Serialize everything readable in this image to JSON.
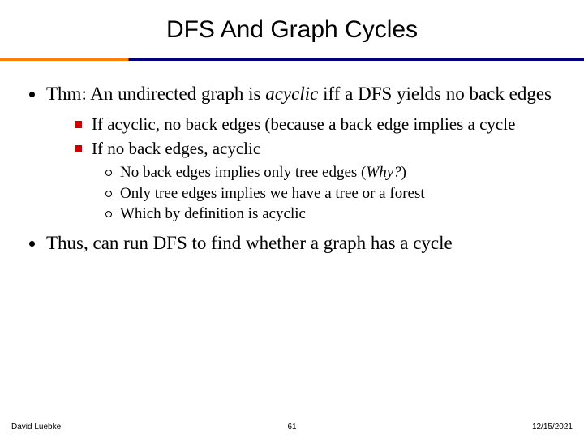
{
  "title": "DFS And Graph Cycles",
  "divider": {
    "left_color": "#ff7f00",
    "right_color": "#000080"
  },
  "body": {
    "p1_a": "Thm: An undirected graph is ",
    "p1_b": "acyclic",
    "p1_c": " iff a DFS yields no back edges",
    "s1": "If acyclic, no back edges (because a back edge implies a cycle",
    "s2": "If no back edges, acyclic",
    "t1_a": "No back edges implies only tree edges (",
    "t1_b": "Why?",
    "t1_c": ")",
    "t2": "Only tree edges implies we have a tree or a forest",
    "t3": "Which by definition is acyclic",
    "p2": "Thus, can run DFS to find whether a graph has a cycle"
  },
  "footer": {
    "author": "David Luebke",
    "page": "61",
    "date": "12/15/2021"
  }
}
